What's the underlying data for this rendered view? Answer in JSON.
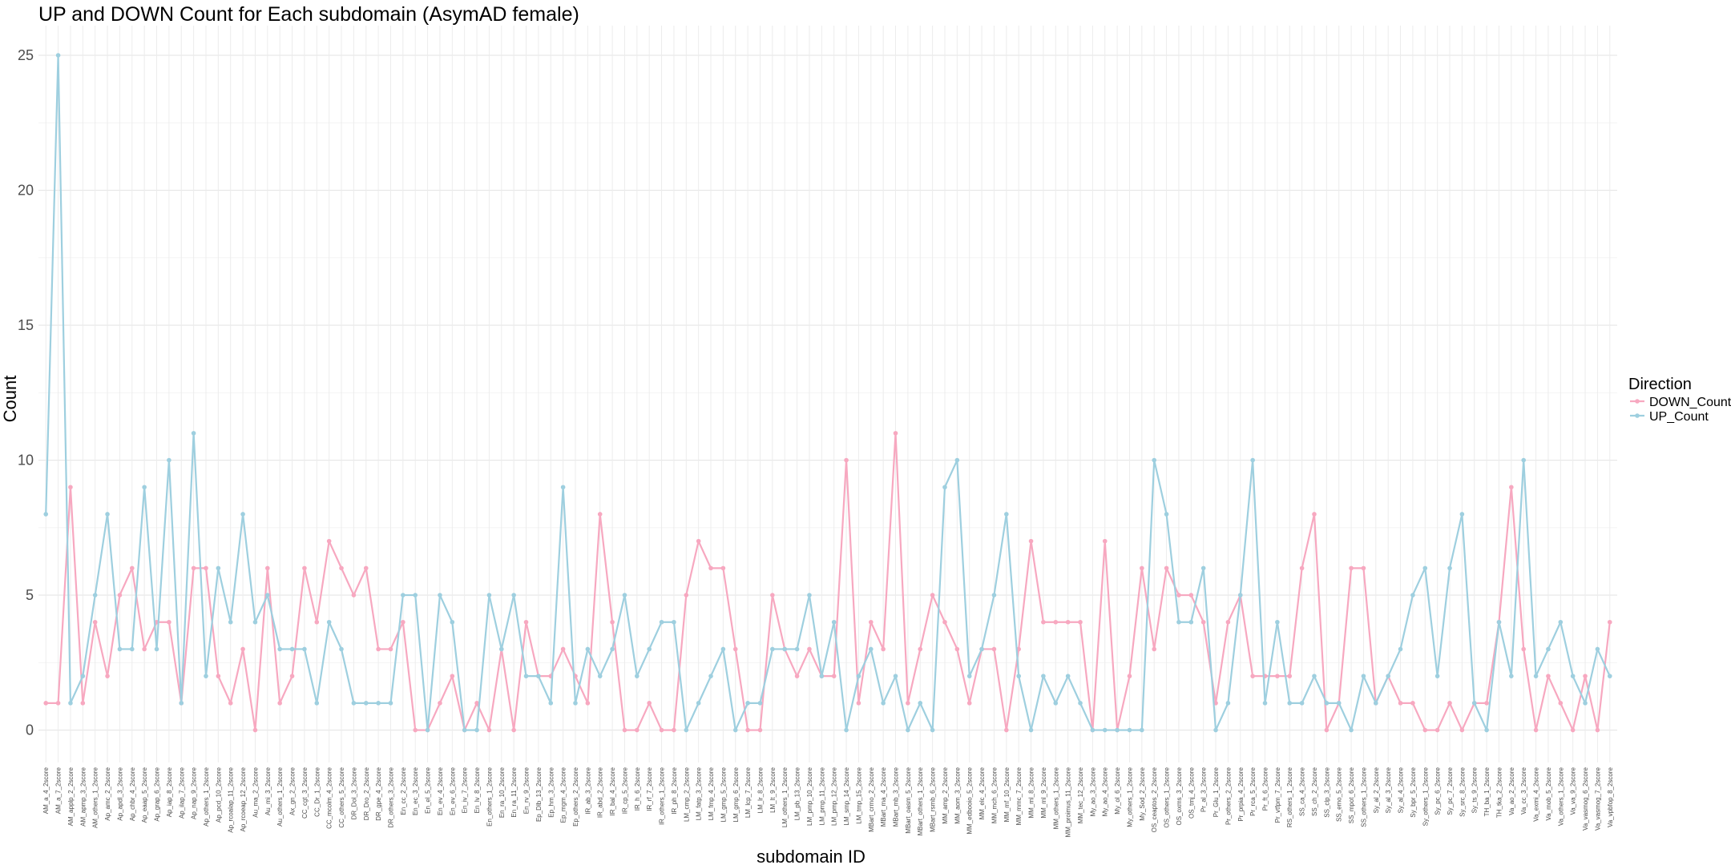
{
  "chart_data": {
    "type": "line",
    "title": "UP and DOWN Count for Each subdomain (AsymAD female)",
    "xlabel": "subdomain ID",
    "ylabel": "Count",
    "ylim": [
      0,
      26
    ],
    "yticks": [
      0,
      5,
      10,
      15,
      20,
      25
    ],
    "grid": true,
    "legend": {
      "title": "Direction",
      "position": "right"
    },
    "categories": [
      "AM_a_4_2score",
      "AM_a_7_2score",
      "AM_applp_2_2score",
      "AM_apmp_3_2score",
      "AM_others_1_2score",
      "Ap_amc_2_2score",
      "Ap_apdl_3_2score",
      "Ap_chbr_4_2score",
      "Ap_eaap_5_2score",
      "Ap_grap_6_2score",
      "Ap_iap_8_2score",
      "Ap_ilap_7_2score",
      "Ap_nap_9_2score",
      "Ap_others_1_2score",
      "Ap_pcd_10_2score",
      "Ap_rcoalap_11_2score",
      "Ap_rcoeap_12_2score",
      "Au_ma_2_2score",
      "Au_mi_3_2score",
      "Au_others_1_2score",
      "Ax_gn_2_2score",
      "CC_cgt_3_2score",
      "CC_Dr_1_2score",
      "CC_mcolm_4_2score",
      "CC_others_5_2score",
      "DR_Dol_3_2score",
      "DR_Dro_2_2score",
      "DR_gpe_4_2score",
      "DR_others_3_2score",
      "En_cc_2_2score",
      "En_ec_3_2score",
      "En_el_5_2score",
      "En_ev_4_2score",
      "En_ev_6_2score",
      "En_iv_7_2score",
      "En_lv_8_2score",
      "En_others_1_2score",
      "En_ra_10_2score",
      "En_ra_11_2score",
      "En_rv_9_2score",
      "Ep_Dlb_13_2score",
      "Ep_hm_3_2score",
      "Ep_mgm_4_2score",
      "Ep_others_2_2score",
      "IR_ab_3_2score",
      "IR_abd_2_2score",
      "IR_bal_4_2score",
      "IR_cp_5_2score",
      "IR_h_6_2score",
      "IR_rf_7_2score",
      "IR_others_1_2score",
      "IR_ph_8_2score",
      "LM_cmp_2_2score",
      "LM_fatp_3_2score",
      "LM_fmp_4_2score",
      "LM_gmp_5_2score",
      "LM_gmp_6_2score",
      "LM_lcp_7_2score",
      "LM_lr_8_2score",
      "LM_lt_9_2score",
      "LM_others_1_2score",
      "LM_pb_13_2score",
      "LM_pmp_10_2score",
      "LM_pmp_11_2score",
      "LM_pmp_12_2score",
      "LM_smp_14_2score",
      "LM_tmp_15_2score",
      "MBart_crmo_2_2score",
      "MBart_ma_4_2score",
      "MBart_mb_3_2score",
      "MBart_oasm_5_2score",
      "MBart_others_1_2score",
      "MBart_rsmb_6_2score",
      "MM_amp_2_2score",
      "MM_aom_3_2score",
      "MM_edbooio_5_2score",
      "MM_elc_4_2score",
      "MM_mch_6_2score",
      "MM_mf_10_2score",
      "MM_mmc_7_2score",
      "MM_ml_8_2score",
      "MM_ml_9_2score",
      "MM_others_1_2score",
      "MM_proimus_11_2score",
      "MM_tec_12_2score",
      "My_ao_3_2score",
      "My_ao_4_2score",
      "My_ol_6_2score",
      "My_others_1_2score",
      "My_Sod_2_2score",
      "OS_ceaptos_2_2score",
      "OS_others_1_2score",
      "OS_oxms_3_2score",
      "OS_tmj_4_2score",
      "Pr_al_3_2score",
      "Pr_Glu_1_2score",
      "Pr_others_2_2score",
      "Pr_prpia_4_2score",
      "Pr_rca_5_2score",
      "Pr_ft_6_2score",
      "Pr_vtfpm_7_2score",
      "RS_others_1_2score",
      "SS_ca_4_2score",
      "SS_ch_2_2score",
      "SS_clp_3_2score",
      "SS_emo_5_2score",
      "SS_mpot_6_2score",
      "SS_others_1_2score",
      "Sy_al_2_2score",
      "Sy_al_3_2score",
      "Sy_al_4_2score",
      "Sy_bpr_5_2score",
      "Sy_others_1_2score",
      "Sy_pc_6_2score",
      "Sy_pc_7_2score",
      "Sy_src_8_2score",
      "Sy_ts_9_2score",
      "TH_ba_1_2score",
      "TH_tka_2_2score",
      "Va_ao_2_2score",
      "Va_cc_3_2score",
      "Va_exmi_4_2score",
      "Va_mob_5_2score",
      "Va_others_1_2score",
      "Va_va_9_2score",
      "Va_vasmog_6_2score",
      "Va_vasmog_7_2score",
      "Va_vpbfop_8_2score"
    ],
    "series": [
      {
        "name": "DOWN_Count",
        "color": "#f7a8c0",
        "values": [
          1,
          1,
          9,
          1,
          4,
          2,
          5,
          6,
          3,
          4,
          4,
          1,
          6,
          6,
          2,
          1,
          3,
          0,
          6,
          1,
          2,
          6,
          4,
          7,
          6,
          5,
          6,
          3,
          3,
          4,
          0,
          0,
          1,
          2,
          0,
          1,
          0,
          3,
          0,
          4,
          2,
          2,
          3,
          2,
          1,
          8,
          4,
          0,
          0,
          1,
          0,
          0,
          5,
          7,
          6,
          6,
          3,
          0,
          0,
          5,
          3,
          2,
          3,
          2,
          2,
          10,
          1,
          4,
          3,
          11,
          1,
          3,
          5,
          4,
          3,
          1,
          3,
          3,
          0,
          3,
          7,
          4,
          4,
          4,
          4,
          0,
          7,
          0,
          2,
          6,
          3,
          6,
          5,
          5,
          4,
          1,
          4,
          5,
          2,
          2,
          2,
          2,
          6,
          8,
          0,
          1,
          6,
          6,
          1,
          2,
          1,
          1,
          0,
          0,
          1,
          0,
          1,
          1,
          4,
          9,
          3,
          0,
          2,
          1,
          0,
          2,
          0,
          4
        ]
      },
      {
        "name": "UP_Count",
        "color": "#9ecfdf",
        "values": [
          8,
          25,
          1,
          2,
          5,
          8,
          3,
          3,
          9,
          3,
          10,
          1,
          11,
          2,
          6,
          4,
          8,
          4,
          5,
          3,
          3,
          3,
          1,
          4,
          3,
          1,
          1,
          1,
          1,
          5,
          5,
          0,
          5,
          4,
          0,
          0,
          5,
          3,
          5,
          2,
          2,
          1,
          9,
          1,
          3,
          2,
          3,
          5,
          2,
          3,
          4,
          4,
          0,
          1,
          2,
          3,
          0,
          1,
          1,
          3,
          3,
          3,
          5,
          2,
          4,
          0,
          2,
          3,
          1,
          2,
          0,
          1,
          0,
          9,
          10,
          2,
          3,
          5,
          8,
          2,
          0,
          2,
          1,
          2,
          1,
          0,
          0,
          0,
          0,
          0,
          10,
          8,
          4,
          4,
          6,
          0,
          1,
          5,
          10,
          1,
          4,
          1,
          1,
          2,
          1,
          1,
          0,
          2,
          1,
          2,
          3,
          5,
          6,
          2,
          6,
          8,
          1,
          0,
          4,
          2,
          10,
          2,
          3,
          4,
          2,
          1,
          3,
          2
        ]
      }
    ]
  }
}
